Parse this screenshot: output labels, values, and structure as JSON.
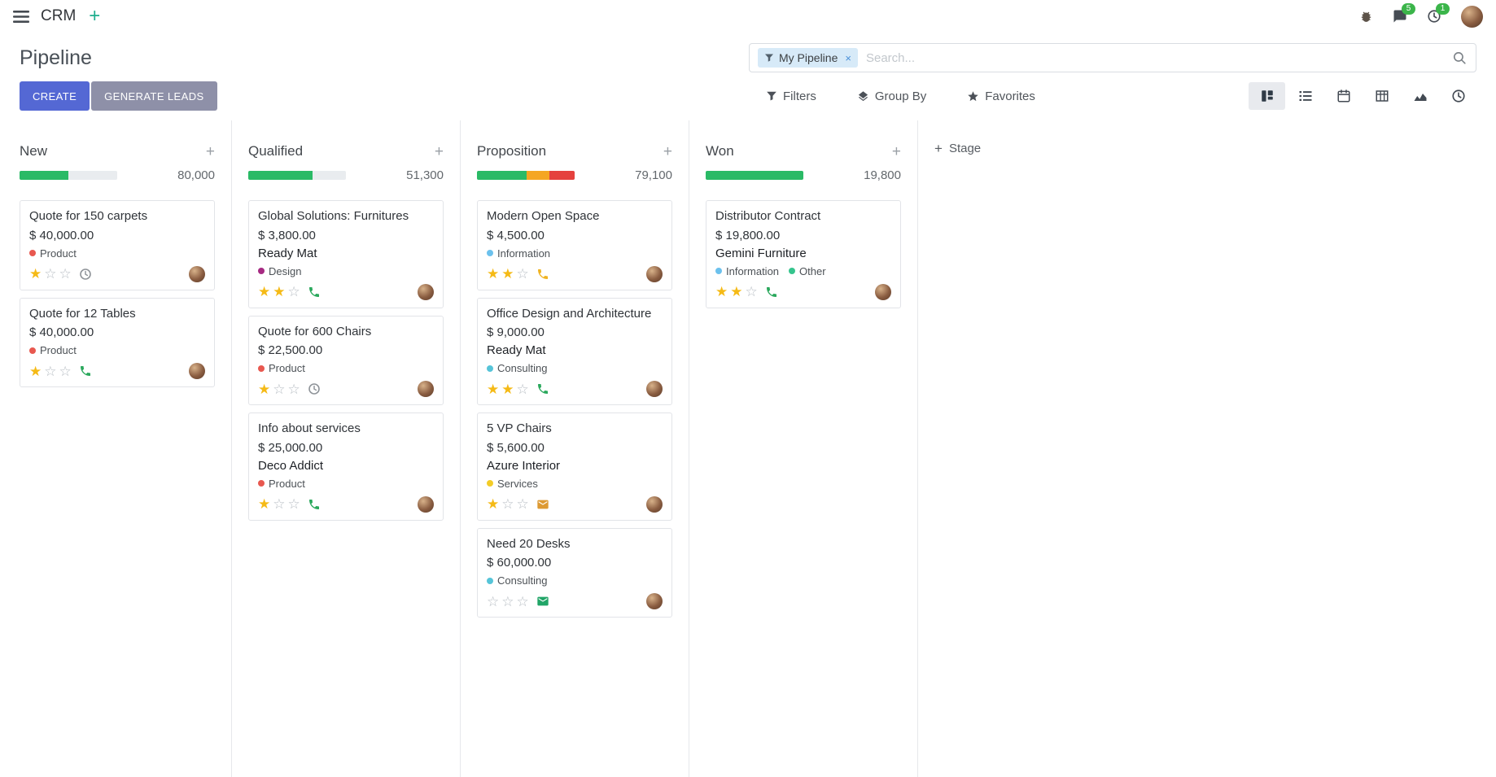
{
  "icons": {
    "plus": "+",
    "close": "×",
    "star_filled": "★",
    "star_empty": "☆"
  },
  "colors": {
    "primary": "#5468d4",
    "secondary": "#8e90a8",
    "progress": {
      "success": "#2aba66",
      "warning": "#f5a623",
      "danger": "#e5413e",
      "empty": "#e9ecef"
    },
    "star_filled": "#f5ba16",
    "star_empty": "#b8bec4",
    "badge_green": "#3bb54a"
  },
  "topbar": {
    "app_name": "CRM",
    "message_badge": "5",
    "activity_badge": "1"
  },
  "control_panel": {
    "title": "Pipeline",
    "create_label": "CREATE",
    "generate_label": "GENERATE LEADS",
    "filters_label": "Filters",
    "groupby_label": "Group By",
    "favorites_label": "Favorites",
    "search": {
      "facet_label": "My Pipeline",
      "placeholder": "Search...",
      "value": ""
    }
  },
  "board": {
    "add_stage_label": "Stage",
    "columns": [
      {
        "name": "New",
        "total": "80,000",
        "progress": [
          {
            "state": "success",
            "pct": 50
          }
        ],
        "cards": [
          {
            "title": "Quote for 150 carpets",
            "amount": "$ 40,000.00",
            "partner": "",
            "tags": [
              {
                "label": "Product",
                "color": "#e8584f"
              }
            ],
            "stars": 1,
            "activity": {
              "type": "clock",
              "color": "#8f9499"
            }
          },
          {
            "title": "Quote for 12 Tables",
            "amount": "$ 40,000.00",
            "partner": "",
            "tags": [
              {
                "label": "Product",
                "color": "#e8584f"
              }
            ],
            "stars": 1,
            "activity": {
              "type": "phone",
              "color": "#2aa85c"
            }
          }
        ]
      },
      {
        "name": "Qualified",
        "total": "51,300",
        "progress": [
          {
            "state": "success",
            "pct": 66
          }
        ],
        "cards": [
          {
            "title": "Global Solutions: Furnitures",
            "amount": "$ 3,800.00",
            "partner": "Ready Mat",
            "tags": [
              {
                "label": "Design",
                "color": "#a62a82"
              }
            ],
            "stars": 2,
            "activity": {
              "type": "phone",
              "color": "#2aa85c"
            }
          },
          {
            "title": "Quote for 600 Chairs",
            "amount": "$ 22,500.00",
            "partner": "",
            "tags": [
              {
                "label": "Product",
                "color": "#e8584f"
              }
            ],
            "stars": 1,
            "activity": {
              "type": "clock",
              "color": "#8f9499"
            }
          },
          {
            "title": "Info about services",
            "amount": "$ 25,000.00",
            "partner": "Deco Addict",
            "tags": [
              {
                "label": "Product",
                "color": "#e8584f"
              }
            ],
            "stars": 1,
            "activity": {
              "type": "phone",
              "color": "#2aa85c"
            }
          }
        ]
      },
      {
        "name": "Proposition",
        "total": "79,100",
        "progress": [
          {
            "state": "success",
            "pct": 51
          },
          {
            "state": "warning",
            "pct": 23
          },
          {
            "state": "danger",
            "pct": 26
          }
        ],
        "cards": [
          {
            "title": "Modern Open Space",
            "amount": "$ 4,500.00",
            "partner": "",
            "tags": [
              {
                "label": "Information",
                "color": "#6cc1ed"
              }
            ],
            "stars": 2,
            "activity": {
              "type": "phone",
              "color": "#f0b321"
            }
          },
          {
            "title": "Office Design and Architecture",
            "amount": "$ 9,000.00",
            "partner": "Ready Mat",
            "tags": [
              {
                "label": "Consulting",
                "color": "#56c4d8"
              }
            ],
            "stars": 2,
            "activity": {
              "type": "phone",
              "color": "#2aa85c"
            }
          },
          {
            "title": "5 VP Chairs",
            "amount": "$ 5,600.00",
            "partner": "Azure Interior",
            "tags": [
              {
                "label": "Services",
                "color": "#f3cc27"
              }
            ],
            "stars": 1,
            "activity": {
              "type": "envelope",
              "color": "#dd9a33"
            }
          },
          {
            "title": "Need 20 Desks",
            "amount": "$ 60,000.00",
            "partner": "",
            "tags": [
              {
                "label": "Consulting",
                "color": "#56c4d8"
              }
            ],
            "stars": 0,
            "activity": {
              "type": "envelope",
              "color": "#21a567"
            }
          }
        ]
      },
      {
        "name": "Won",
        "total": "19,800",
        "progress": [
          {
            "state": "success",
            "pct": 100
          }
        ],
        "cards": [
          {
            "title": "Distributor Contract",
            "amount": "$ 19,800.00",
            "partner": "Gemini Furniture",
            "tags": [
              {
                "label": "Information",
                "color": "#6cc1ed"
              },
              {
                "label": "Other",
                "color": "#35c48d"
              }
            ],
            "stars": 2,
            "activity": {
              "type": "phone",
              "color": "#2aa85c"
            }
          }
        ]
      }
    ]
  }
}
